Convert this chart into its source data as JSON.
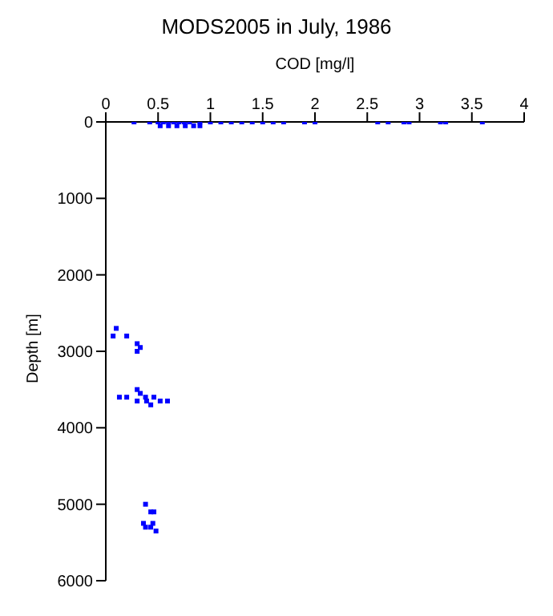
{
  "chart_data": {
    "type": "scatter",
    "title": "MODS2005 in July, 1986",
    "xlabel": "COD [mg/l]",
    "ylabel": "Depth [m]",
    "xlim": [
      0,
      4
    ],
    "xticks": [
      0,
      0.5,
      1,
      1.5,
      2,
      2.5,
      3,
      3.5,
      4
    ],
    "ylim": [
      6000,
      0
    ],
    "yticks": [
      0,
      1000,
      2000,
      3000,
      4000,
      5000,
      6000
    ],
    "marker": "square",
    "grid": false,
    "legend": false,
    "series": [
      {
        "color": "#0000ff",
        "x": [
          0.27,
          0.42,
          0.5,
          0.55,
          0.6,
          0.65,
          0.7,
          0.75,
          0.8,
          0.9,
          0.52,
          0.6,
          0.68,
          0.76,
          0.84,
          0.9,
          1.0,
          1.1,
          1.2,
          1.3,
          1.4,
          1.5,
          1.6,
          1.7,
          1.9,
          2.0,
          2.6,
          2.7,
          2.85,
          2.9,
          3.2,
          3.25,
          3.6,
          0.07,
          0.1,
          0.2,
          0.3,
          0.33,
          0.3,
          0.13,
          0.2,
          0.3,
          0.33,
          0.3,
          0.38,
          0.39,
          0.43,
          0.46,
          0.52,
          0.59,
          0.38,
          0.43,
          0.46,
          0.45,
          0.36,
          0.38,
          0.43,
          0.48
        ],
        "values": [
          0,
          0,
          0,
          0,
          0,
          0,
          0,
          0,
          0,
          0,
          50,
          50,
          50,
          50,
          50,
          50,
          0,
          0,
          0,
          0,
          0,
          0,
          0,
          0,
          0,
          0,
          0,
          0,
          0,
          0,
          0,
          0,
          0,
          2800,
          2700,
          2800,
          2900,
          2950,
          3000,
          3600,
          3600,
          3500,
          3550,
          3650,
          3600,
          3650,
          3700,
          3600,
          3650,
          3650,
          5000,
          5100,
          5100,
          5250,
          5250,
          5300,
          5300,
          5350
        ]
      }
    ]
  }
}
